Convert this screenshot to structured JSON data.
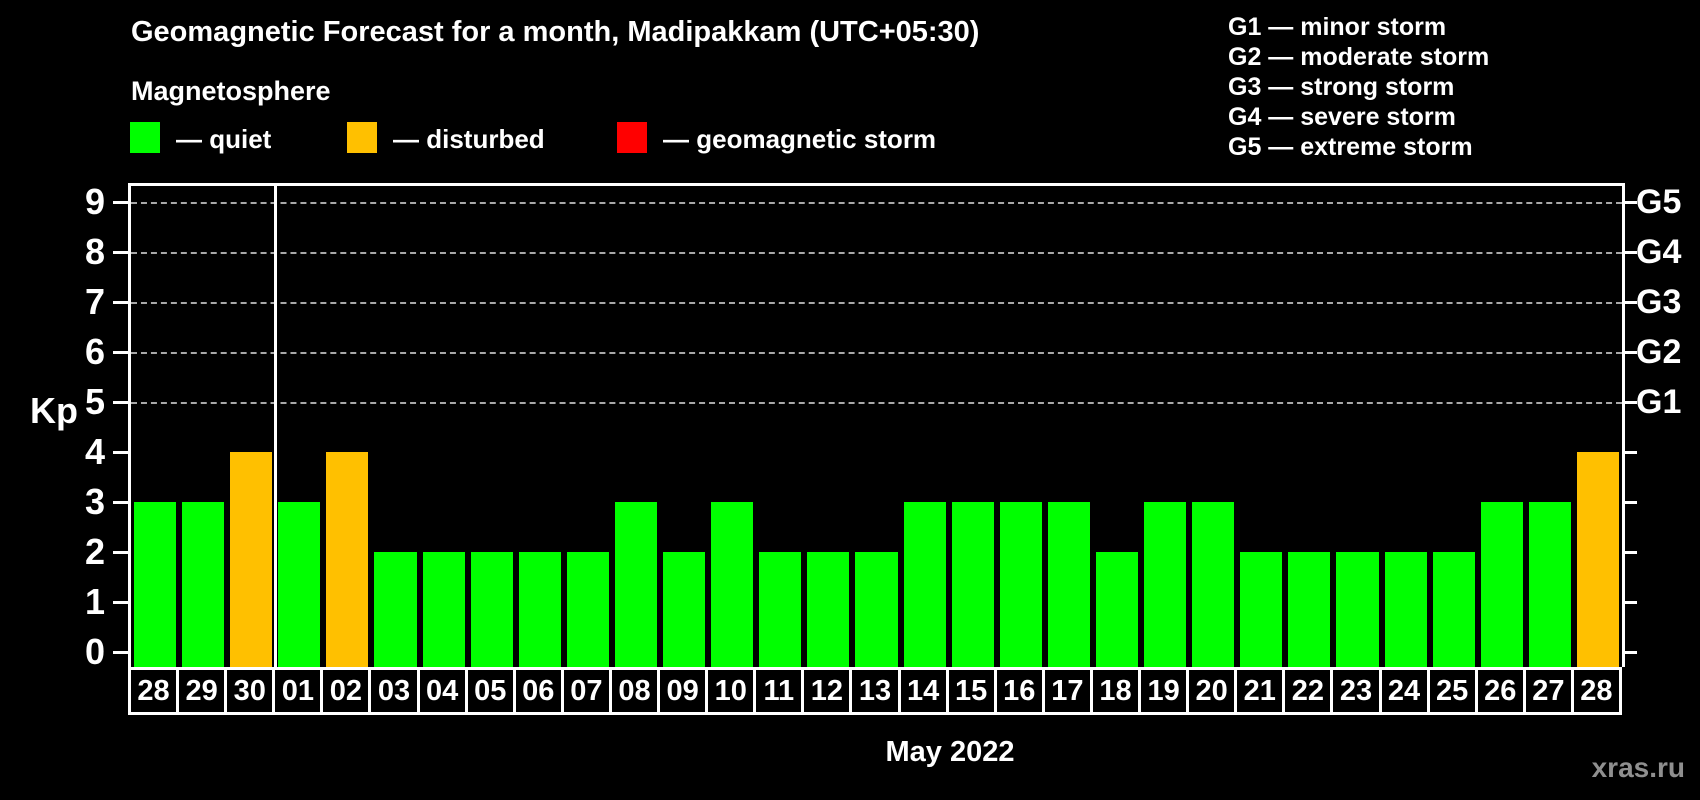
{
  "title": "Geomagnetic Forecast for a month, Madipakkam (UTC+05:30)",
  "subtitle": "Magnetosphere",
  "legend": [
    {
      "key": "quiet",
      "label": "— quiet"
    },
    {
      "key": "disturbed",
      "label": "— disturbed"
    },
    {
      "key": "storm",
      "label": "— geomagnetic storm"
    }
  ],
  "colors": {
    "quiet": "#00ff00",
    "disturbed": "#ffc000",
    "storm": "#ff0000",
    "background": "#000000",
    "axis": "#ffffff",
    "gridline": "#a8a8a8",
    "watermark": "#8f8f8f"
  },
  "g_legend": [
    "G1 — minor storm",
    "G2 — moderate storm",
    "G3 — strong storm",
    "G4 — severe storm",
    "G5 — extreme storm"
  ],
  "y_axis_label": "Kp",
  "x_axis_label": "May 2022",
  "watermark": "xras.ru",
  "chart_data": {
    "type": "bar",
    "title": "Geomagnetic Forecast for a month, Madipakkam (UTC+05:30)",
    "ylabel": "Kp",
    "xlabel": "May 2022",
    "categories": [
      "28",
      "29",
      "30",
      "01",
      "02",
      "03",
      "04",
      "05",
      "06",
      "07",
      "08",
      "09",
      "10",
      "11",
      "12",
      "13",
      "14",
      "15",
      "16",
      "17",
      "18",
      "19",
      "20",
      "21",
      "22",
      "23",
      "24",
      "25",
      "26",
      "27",
      "28"
    ],
    "values": [
      3,
      3,
      4,
      3,
      4,
      2,
      2,
      2,
      2,
      2,
      3,
      2,
      3,
      2,
      2,
      2,
      3,
      3,
      3,
      3,
      2,
      3,
      3,
      2,
      2,
      2,
      2,
      2,
      3,
      3,
      4
    ],
    "statuses": [
      "quiet",
      "quiet",
      "disturbed",
      "quiet",
      "disturbed",
      "quiet",
      "quiet",
      "quiet",
      "quiet",
      "quiet",
      "quiet",
      "quiet",
      "quiet",
      "quiet",
      "quiet",
      "quiet",
      "quiet",
      "quiet",
      "quiet",
      "quiet",
      "quiet",
      "quiet",
      "quiet",
      "quiet",
      "quiet",
      "quiet",
      "quiet",
      "quiet",
      "quiet",
      "quiet",
      "disturbed"
    ],
    "ylim": [
      0,
      9
    ],
    "yticks": [
      0,
      1,
      2,
      3,
      4,
      5,
      6,
      7,
      8,
      9
    ],
    "gridlines_at": [
      5,
      6,
      7,
      8,
      9
    ],
    "grid_style": "dashed",
    "right_axis": [
      {
        "label": "G1",
        "kp": 5
      },
      {
        "label": "G2",
        "kp": 6
      },
      {
        "label": "G3",
        "kp": 7
      },
      {
        "label": "G4",
        "kp": 8
      },
      {
        "label": "G5",
        "kp": 9
      }
    ],
    "month_separator_after_index": 2,
    "legend_position": "top-left"
  }
}
